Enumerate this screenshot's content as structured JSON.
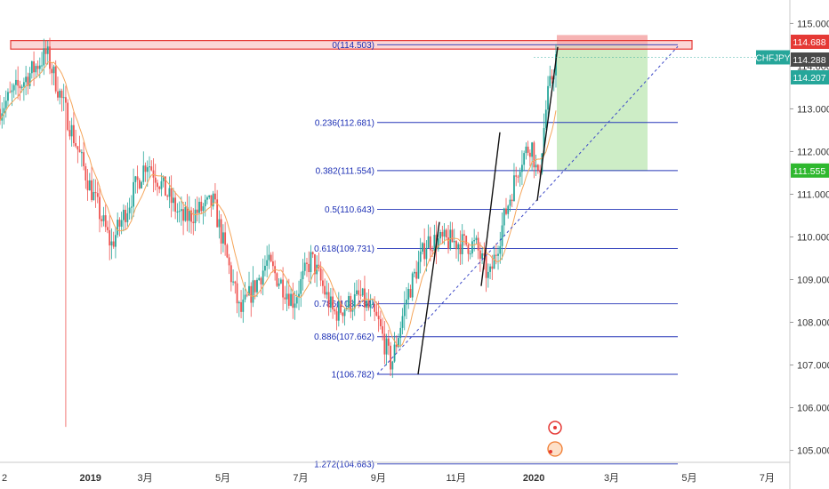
{
  "chart_data": {
    "type": "candlestick",
    "symbol": "CHFJPY",
    "price_axis": {
      "ylim": [
        104.7,
        115.7
      ],
      "ticks": [
        "115.000",
        "114.000",
        "113.000",
        "112.000",
        "111.000",
        "110.000",
        "109.000",
        "108.000",
        "107.000",
        "106.000",
        "105.000"
      ],
      "badges": [
        {
          "label": "114.688",
          "value": 114.688,
          "color": "#e53935"
        },
        {
          "label": "114.288",
          "value": 114.288,
          "color": "#4a4a4a"
        },
        {
          "label": "114.207",
          "value": 114.207,
          "color": "#26a69a"
        },
        {
          "label": "111.555",
          "value": 111.555,
          "color": "#2eb82e"
        }
      ],
      "symbol_badge": {
        "label": "CHFJPY",
        "color": "#26a69a"
      }
    },
    "time_axis": {
      "labels": [
        "2",
        "2019",
        "3月",
        "5月",
        "7月",
        "9月",
        "11月",
        "2020",
        "3月",
        "5月",
        "7月"
      ],
      "positions": [
        0,
        1,
        3,
        5,
        7,
        9,
        11,
        13,
        15,
        17,
        19
      ]
    },
    "fibonacci": {
      "levels": [
        {
          "label": "0(114.503)",
          "value": 114.503
        },
        {
          "label": "0.236(112.681)",
          "value": 112.681
        },
        {
          "label": "0.382(111.554)",
          "value": 111.554
        },
        {
          "label": "0.5(110.643)",
          "value": 110.643
        },
        {
          "label": "0.618(109.731)",
          "value": 109.731
        },
        {
          "label": "0.786(108.434)",
          "value": 108.434
        },
        {
          "label": "0.886(107.662)",
          "value": 107.662
        },
        {
          "label": "1(106.782)",
          "value": 106.782
        },
        {
          "label": "1.272(104.683)",
          "value": 104.683
        }
      ],
      "color": "#2636b8"
    },
    "resistance_zone": {
      "low": 114.4,
      "high": 114.6,
      "color": "#e53935"
    },
    "position": {
      "entry": 114.503,
      "stop": 114.688,
      "target": 111.555,
      "loss_color": "#f4a6a6",
      "profit_color": "#c8ebc0"
    },
    "trendline": {
      "from": 106.782,
      "to": 114.503
    },
    "ohlc_sample": {
      "start_price": 113.0,
      "waypoints": [
        [
          0,
          113.0
        ],
        [
          2.1,
          114.3
        ],
        [
          3.9,
          111.4
        ],
        [
          5.0,
          109.8
        ],
        [
          6.6,
          111.8
        ],
        [
          8.2,
          110.4
        ],
        [
          9.6,
          110.8
        ],
        [
          10.8,
          108.2
        ],
        [
          12.0,
          109.4
        ],
        [
          13.2,
          108.5
        ],
        [
          14.0,
          109.5
        ],
        [
          15.0,
          108.2
        ],
        [
          16.2,
          108.6
        ],
        [
          17.0,
          108.0
        ],
        [
          17.6,
          107.0
        ],
        [
          18.3,
          108.6
        ],
        [
          19.2,
          109.9
        ],
        [
          20.2,
          109.9
        ],
        [
          21.4,
          109.8
        ],
        [
          22.0,
          109.0
        ],
        [
          22.7,
          110.5
        ],
        [
          23.4,
          111.8
        ],
        [
          23.9,
          112.2
        ],
        [
          24.2,
          111.3
        ],
        [
          24.6,
          113.2
        ],
        [
          25.0,
          114.2
        ]
      ]
    }
  }
}
